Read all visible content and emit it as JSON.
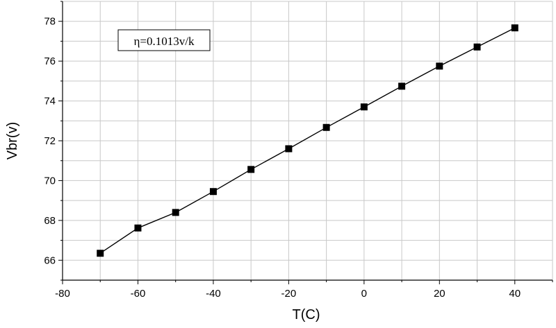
{
  "chart_data": {
    "type": "line",
    "title": "",
    "xlabel": "T(C)",
    "ylabel": "Vbr(v)",
    "xlim": [
      -80,
      50
    ],
    "ylim": [
      65,
      79
    ],
    "xticks": [
      -80,
      -60,
      -40,
      -20,
      0,
      20,
      40
    ],
    "yticks": [
      66,
      68,
      70,
      72,
      74,
      76,
      78
    ],
    "grid": true,
    "legend": "none",
    "annotation": "η=0.1013v/k",
    "series": [
      {
        "name": "Vbr",
        "marker": "square",
        "x": [
          -70,
          -60,
          -50,
          -40,
          -30,
          -20,
          -10,
          0,
          10,
          20,
          30,
          40
        ],
        "values": [
          66.35,
          67.62,
          68.4,
          69.45,
          70.56,
          71.6,
          72.67,
          73.7,
          74.74,
          75.75,
          76.71,
          77.67
        ]
      }
    ]
  },
  "colors": {
    "line": "#000000",
    "marker": "#000000",
    "grid": "#c8c8c8",
    "axis": "#000000",
    "background": "#ffffff"
  }
}
